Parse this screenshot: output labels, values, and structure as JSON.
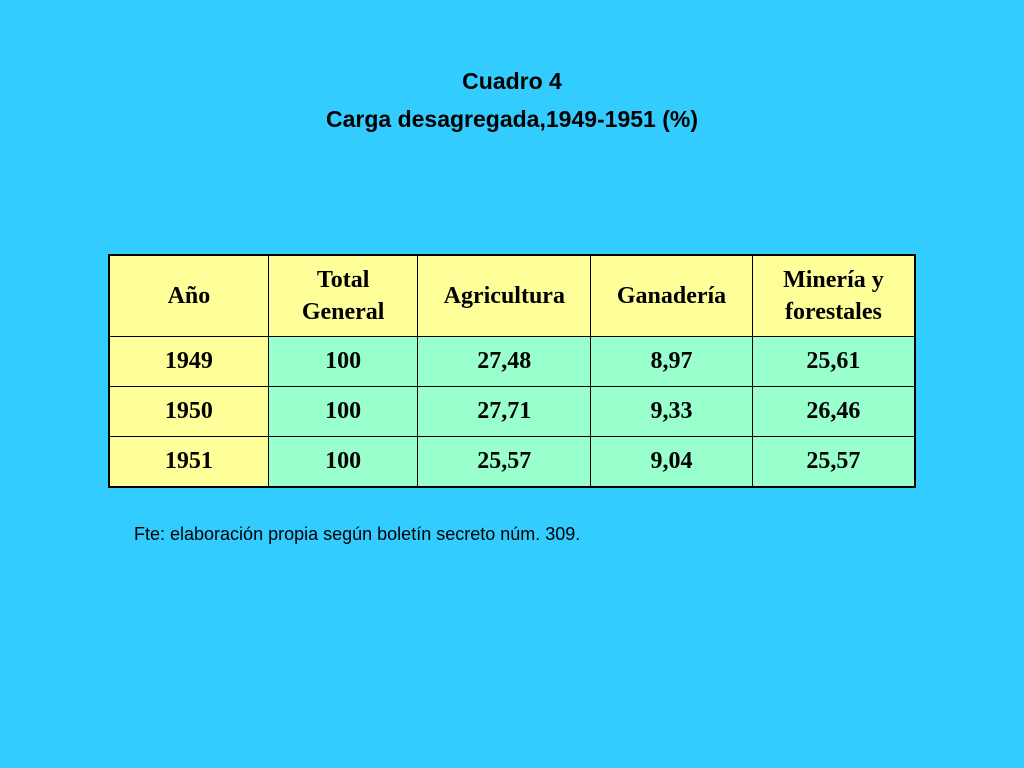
{
  "title": {
    "line1": "Cuadro 4",
    "line2": "Carga desagregada,1949-1951 (%)"
  },
  "table": {
    "headers": [
      "Año",
      "Total\nGeneral",
      "Agricultura",
      "Ganadería",
      "Minería y\nforestales"
    ],
    "rows": [
      [
        "1949",
        "100",
        "27,48",
        "8,97",
        "25,61"
      ],
      [
        "1950",
        "100",
        "27,71",
        "9,33",
        "26,46"
      ],
      [
        "1951",
        "100",
        "25,57",
        "9,04",
        "25,57"
      ]
    ]
  },
  "source": "Fte: elaboración propia según boletín secreto núm. 309.",
  "colors": {
    "background": "#33ccff",
    "header_cell": "#ffff99",
    "year_cell": "#ffff99",
    "data_cell": "#99ffcc"
  }
}
